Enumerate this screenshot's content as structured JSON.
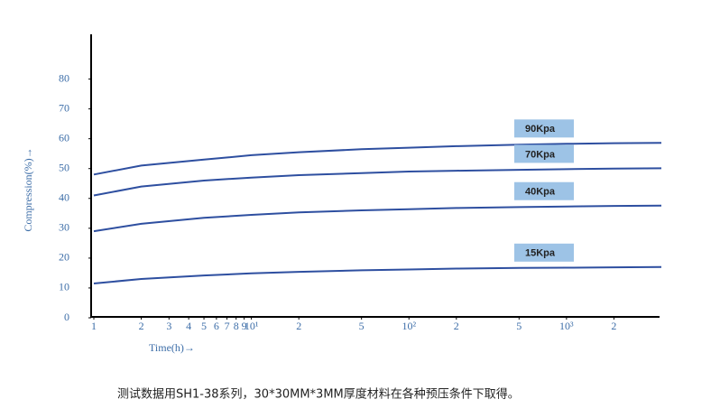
{
  "chart_data": {
    "type": "line",
    "x_label": "Time(h)→",
    "y_label": "Compression(%)→",
    "caption": "测试数据用SH1-38系列，30*30MM*3MM厚度材料在各种预压条件下取得。",
    "x": [
      1,
      2,
      5,
      10,
      20,
      50,
      100,
      200,
      500,
      1000,
      2000,
      4000
    ],
    "series": [
      {
        "name": "90Kpa",
        "color": "#2e4fa0",
        "values": [
          48,
          51,
          53,
          54.5,
          55.5,
          56.5,
          57,
          57.5,
          58,
          58.3,
          58.5,
          58.6
        ]
      },
      {
        "name": "70Kpa",
        "color": "#2e4fa0",
        "values": [
          41,
          44,
          46,
          47,
          47.8,
          48.5,
          49,
          49.3,
          49.6,
          49.8,
          50,
          50.1
        ]
      },
      {
        "name": "40Kpa",
        "color": "#2e4fa0",
        "values": [
          29,
          31.5,
          33.5,
          34.5,
          35.3,
          36,
          36.4,
          36.8,
          37.1,
          37.3,
          37.5,
          37.6
        ]
      },
      {
        "name": "15Kpa",
        "color": "#2e4fa0",
        "values": [
          11.5,
          13,
          14.2,
          14.9,
          15.4,
          15.9,
          16.2,
          16.5,
          16.7,
          16.8,
          16.9,
          17
        ]
      }
    ],
    "label_fill": "#9dc3e6",
    "x_log": true,
    "xlim": [
      1,
      4000
    ],
    "ylim": [
      0,
      95
    ],
    "xticks": [
      1,
      2,
      3,
      4,
      5,
      6,
      7,
      8,
      9,
      {
        "value": 10,
        "label": "10¹"
      },
      {
        "value": 20,
        "label": "2"
      },
      {
        "value": 50,
        "label": "5"
      },
      {
        "value": 100,
        "label": "10²"
      },
      {
        "value": 200,
        "label": "2"
      },
      {
        "value": 500,
        "label": "5"
      },
      {
        "value": 1000,
        "label": "10³"
      },
      {
        "value": 2000,
        "label": "2"
      }
    ],
    "yticks": [
      0,
      10,
      20,
      30,
      40,
      50,
      60,
      70,
      80
    ]
  }
}
